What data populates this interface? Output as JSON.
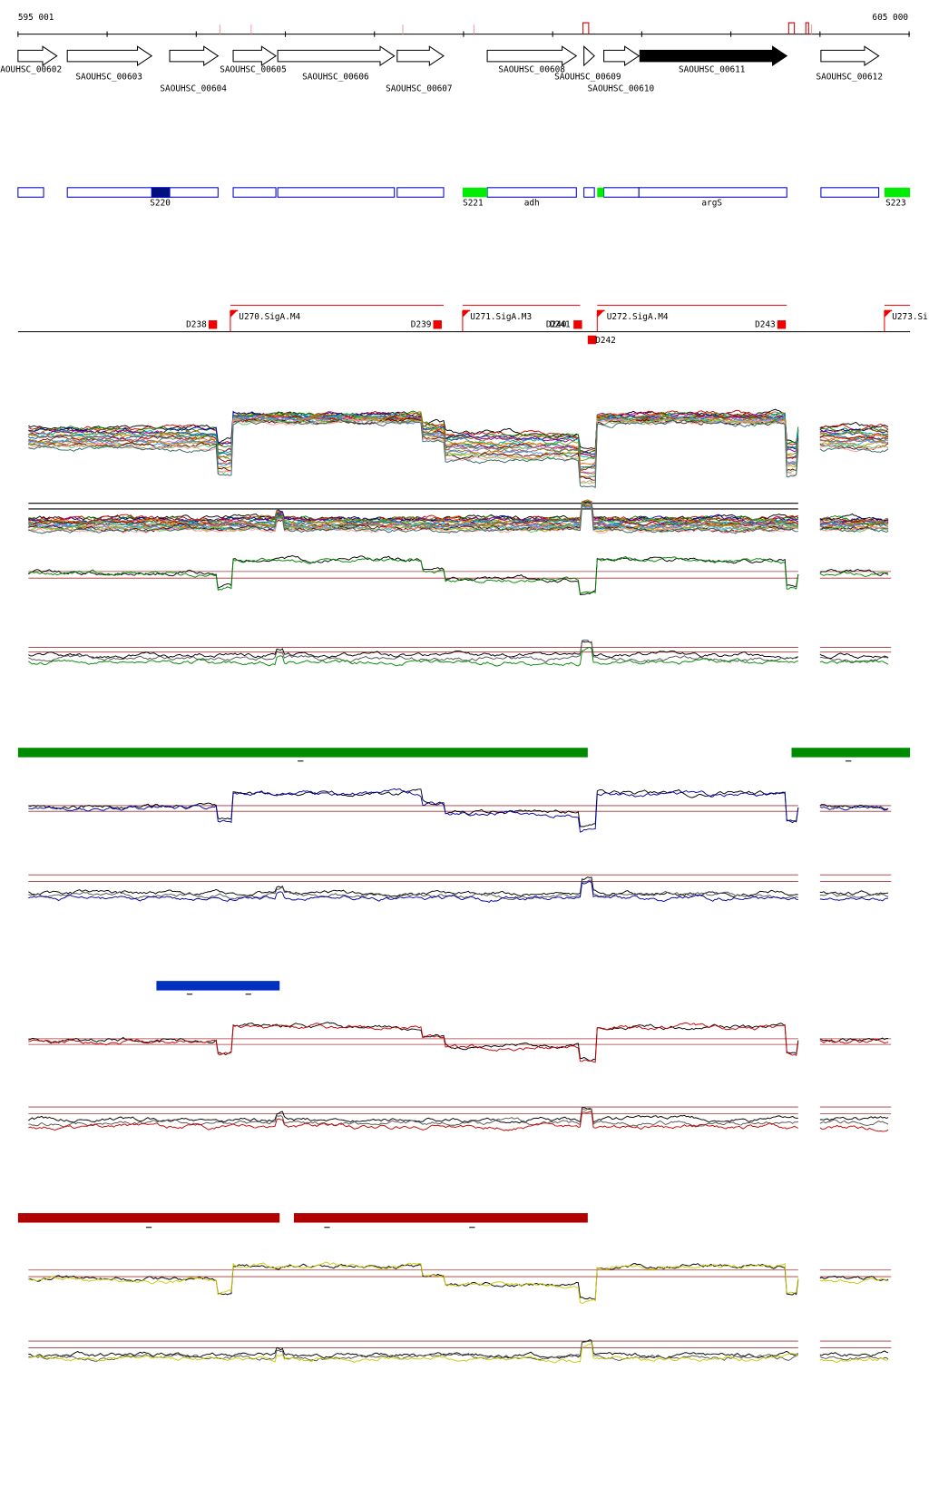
{
  "header": {
    "start": "595 001",
    "end": "605 000"
  },
  "genes": [
    {
      "label": "SAOUHSC_00602"
    },
    {
      "label": "SAOUHSC_00603"
    },
    {
      "label": "SAOUHSC_00604"
    },
    {
      "label": "SAOUHSC_00605"
    },
    {
      "label": "SAOUHSC_00606"
    },
    {
      "label": "SAOUHSC_00607"
    },
    {
      "label": "SAOUHSC_00608"
    },
    {
      "label": "SAOUHSC_00609"
    },
    {
      "label": "SAOUHSC_00610"
    },
    {
      "label": "SAOUHSC_00611"
    },
    {
      "label": "SAOUHSC_00612"
    }
  ],
  "segments": [
    {
      "label": "S220"
    },
    {
      "label": "S221"
    },
    {
      "label": "adh"
    },
    {
      "label": "argS"
    },
    {
      "label": "S223"
    }
  ],
  "transcripts": [
    {
      "label": "D238"
    },
    {
      "label": "U270.SigA.M4"
    },
    {
      "label": "D239"
    },
    {
      "label": "U271.SigA.M3"
    },
    {
      "label": "D240"
    },
    {
      "label": "D241"
    },
    {
      "label": "D242"
    },
    {
      "label": "U272.SigA.M4"
    },
    {
      "label": "D243"
    },
    {
      "label": "U273.Si"
    }
  ]
}
